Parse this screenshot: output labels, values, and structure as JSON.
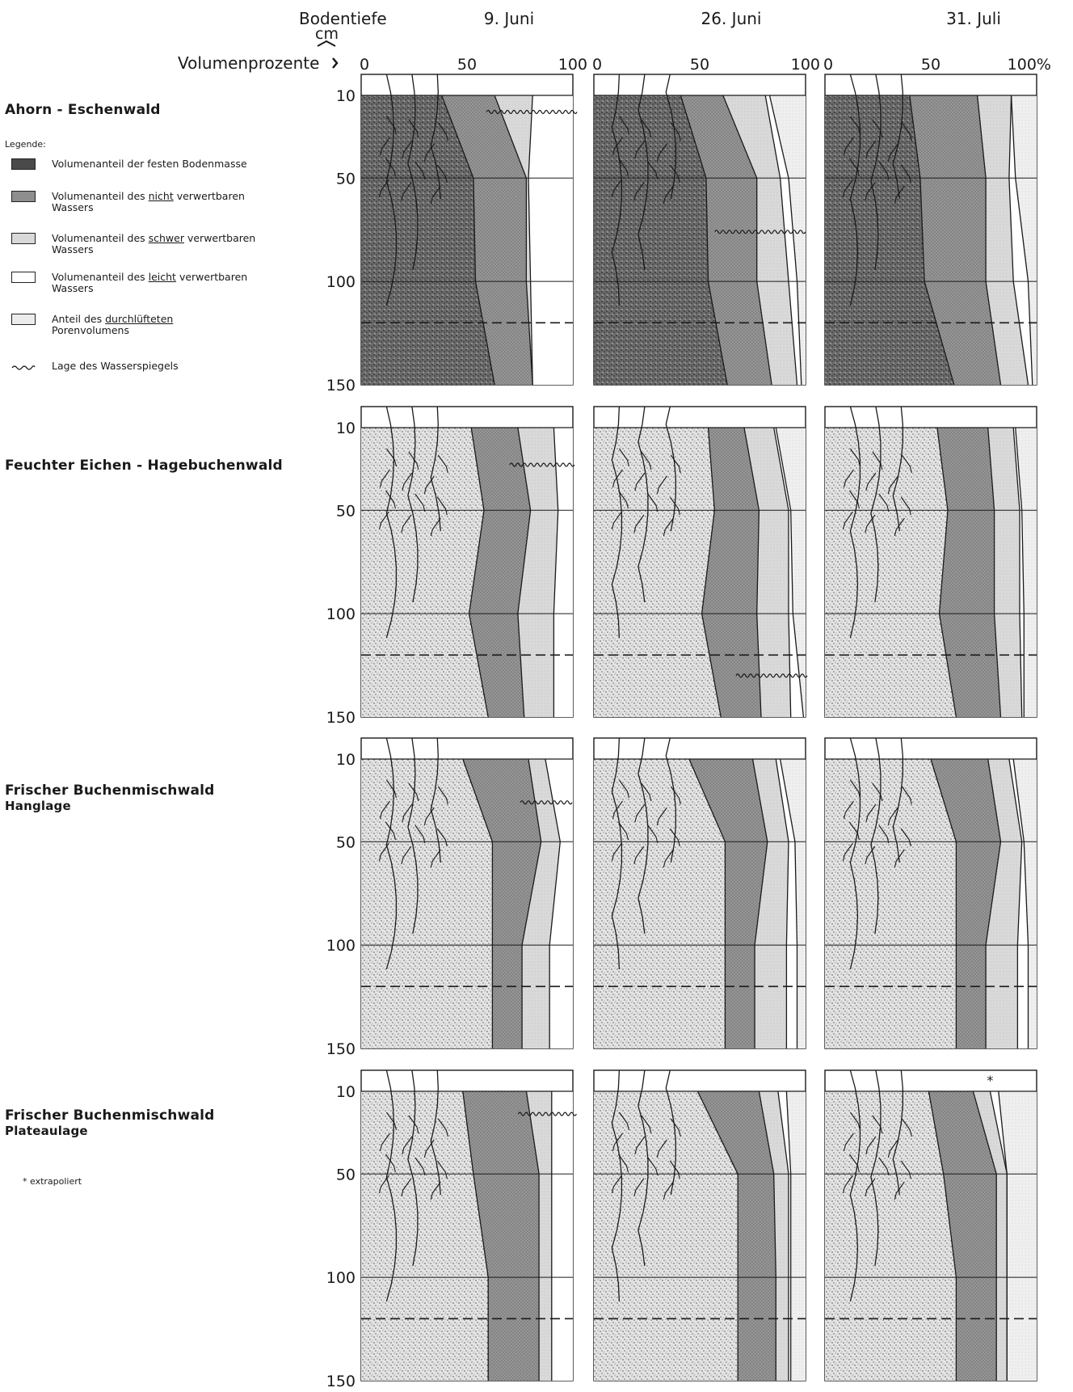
{
  "header": {
    "depth_label": "Bodentiefe",
    "depth_unit": "cm",
    "volume_label": "Volumenprozente",
    "columns": [
      "9. Juni",
      "26. Juni",
      "31. Juli"
    ],
    "x_ticks": [
      [
        "0",
        "50",
        "100"
      ],
      [
        "0",
        "50",
        "100"
      ],
      [
        "0",
        "50",
        "100%"
      ]
    ],
    "y_ticks": [
      "10",
      "50",
      "100",
      "150"
    ]
  },
  "legend": {
    "title": "Legende:",
    "items": [
      {
        "text": "Volumenanteil der festen Bodenmasse",
        "key": "solid"
      },
      {
        "text_pre": "Volumenanteil des ",
        "text_u": "nicht",
        "text_post": " verwertbaren",
        "text2": "Wassers",
        "key": "nicht"
      },
      {
        "text_pre": "Volumenanteil des ",
        "text_u": "schwer",
        "text_post": " verwertbaren",
        "text2": "Wassers",
        "key": "schwer"
      },
      {
        "text_pre": "Volumenanteil des ",
        "text_u": "leicht",
        "text_post": " verwertbaren",
        "text2": "Wassers",
        "key": "leicht"
      },
      {
        "text_pre": "Anteil des ",
        "text_u": "durchlüfteten",
        "text_post": "",
        "text2": "Porenvolumens",
        "key": "air"
      },
      {
        "text": "Lage des Wasserspiegels",
        "key": "water"
      }
    ],
    "footnote": "* extrapoliert"
  },
  "colors": {
    "solid_dark": "#5a5a5a",
    "solid_light": "#d2d2d2",
    "nicht": "#8e8e8e",
    "schwer": "#d9d9d9",
    "leicht": "#ffffff",
    "air": "#ececec",
    "line": "#1a1a1a"
  },
  "chart_data": {
    "type": "area",
    "x_unit": "Volumenprozente",
    "y_unit": "Bodentiefe cm",
    "xlim": [
      0,
      100
    ],
    "ylim": [
      10,
      150
    ],
    "depths": [
      10,
      50,
      100,
      150
    ],
    "series_order": [
      "Volumenanteil der festen Bodenmasse",
      "Volumenanteil des nicht verwertbaren Wassers",
      "Volumenanteil des schwer verwertbaren Wassers",
      "Volumenanteil des leicht verwertbaren Wassers",
      "Anteil des durchlüfteten Porenvolumens"
    ],
    "forests": [
      {
        "name": "Ahorn - Eschenwald",
        "subtitle": "",
        "dense_solid": true,
        "panels": [
          {
            "date": "9. Juni",
            "b1": [
              38,
              53,
              54,
              63
            ],
            "b2": [
              63,
              78,
              78,
              81
            ],
            "b3": [
              81,
              79,
              80,
              81
            ],
            "b4": [
              100,
              100,
              100,
              100
            ],
            "water_depth": 18,
            "dashed_depth": 120
          },
          {
            "date": "26. Juni",
            "b1": [
              41,
              53,
              54,
              63
            ],
            "b2": [
              61,
              77,
              77,
              84
            ],
            "b3": [
              81,
              88,
              92,
              96
            ],
            "b4": [
              83,
              92,
              96,
              98
            ],
            "water_depth": 76,
            "dashed_depth": 120
          },
          {
            "date": "31. Juli",
            "b1": [
              40,
              45,
              47,
              61
            ],
            "b2": [
              72,
              76,
              76,
              83
            ],
            "b3": [
              88,
              87,
              89,
              96
            ],
            "b4": [
              88,
              90,
              96,
              98
            ],
            "water_depth": null,
            "dashed_depth": 120
          }
        ]
      },
      {
        "name": "Feuchter Eichen - Hagebuchenwald",
        "subtitle": "",
        "dense_solid": false,
        "panels": [
          {
            "date": "9. Juni",
            "b1": [
              52,
              58,
              51,
              60
            ],
            "b2": [
              74,
              80,
              74,
              77
            ],
            "b3": [
              91,
              93,
              91,
              91
            ],
            "b4": [
              100,
              100,
              100,
              100
            ],
            "water_depth": 28,
            "dashed_depth": 120
          },
          {
            "date": "26. Juni",
            "b1": [
              54,
              57,
              51,
              60
            ],
            "b2": [
              71,
              78,
              77,
              79
            ],
            "b3": [
              85,
              92,
              92,
              93
            ],
            "b4": [
              86,
              93,
              94,
              99
            ],
            "water_depth": 130,
            "dashed_depth": 120
          },
          {
            "date": "31. Juli",
            "b1": [
              53,
              58,
              54,
              62
            ],
            "b2": [
              77,
              80,
              80,
              83
            ],
            "b3": [
              89,
              92,
              92,
              93
            ],
            "b4": [
              90,
              93,
              94,
              94
            ],
            "water_depth": null,
            "dashed_depth": 120
          }
        ]
      },
      {
        "name": "Frischer Buchenmischwald",
        "subtitle": "Hanglage",
        "dense_solid": false,
        "panels": [
          {
            "date": "9. Juni",
            "b1": [
              48,
              62,
              62,
              62
            ],
            "b2": [
              79,
              85,
              76,
              76
            ],
            "b3": [
              87,
              94,
              89,
              89
            ],
            "b4": [
              100,
              100,
              100,
              100
            ],
            "water_depth": 31,
            "dashed_depth": 120
          },
          {
            "date": "26. Juni",
            "b1": [
              45,
              62,
              62,
              62
            ],
            "b2": [
              75,
              82,
              76,
              76
            ],
            "b3": [
              86,
              92,
              91,
              91
            ],
            "b4": [
              88,
              95,
              96,
              96
            ],
            "water_depth": null,
            "dashed_depth": 120
          },
          {
            "date": "31. Juli",
            "b1": [
              50,
              62,
              62,
              62
            ],
            "b2": [
              77,
              83,
              76,
              76
            ],
            "b3": [
              87,
              93,
              91,
              91
            ],
            "b4": [
              89,
              94,
              96,
              96
            ],
            "water_depth": null,
            "dashed_depth": 120
          }
        ]
      },
      {
        "name": "Frischer Buchenmischwald",
        "subtitle": "Plateaulage",
        "dense_solid": false,
        "panels": [
          {
            "date": "9. Juni",
            "b1": [
              48,
              53,
              60,
              60
            ],
            "b2": [
              78,
              84,
              84,
              84
            ],
            "b3": [
              90,
              90,
              90,
              90
            ],
            "b4": [
              100,
              100,
              100,
              100
            ],
            "water_depth": 21,
            "dashed_depth": 120
          },
          {
            "date": "26. Juni",
            "b1": [
              49,
              68,
              68,
              68
            ],
            "b2": [
              78,
              85,
              86,
              86
            ],
            "b3": [
              87,
              92,
              92,
              92
            ],
            "b4": [
              91,
              93,
              93,
              93
            ],
            "water_depth": null,
            "dashed_depth": 120
          },
          {
            "date": "31. Juli",
            "b1": [
              49,
              56,
              62,
              62
            ],
            "b2": [
              70,
              81,
              81,
              81
            ],
            "b3": [
              78,
              86,
              86,
              86
            ],
            "b4": [
              82,
              86,
              86,
              86
            ],
            "water_depth": null,
            "dashed_depth": 120,
            "extrapolated_marker": "*"
          }
        ]
      }
    ]
  }
}
